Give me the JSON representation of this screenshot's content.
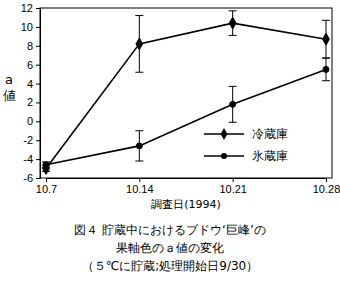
{
  "chart_data": {
    "type": "line",
    "title": [
      "図４ 貯蔵中におけるブドウ‘巨峰’の",
      "果軸色のａ値の変化",
      "（５℃に貯蔵;処理開始日9/30）"
    ],
    "x_label": "調査日(1994)",
    "y_label": "a値",
    "categories": [
      "10.7",
      "10.14",
      "10.21",
      "10.28"
    ],
    "series": [
      {
        "name": "冷蔵庫",
        "color": "#000000",
        "marker": "diamond",
        "values": [
          -5.0,
          8.2,
          10.4,
          8.7
        ],
        "errors": [
          0.3,
          3.0,
          1.3,
          2.0
        ]
      },
      {
        "name": "氷蔵庫",
        "color": "#000000",
        "marker": "circle",
        "values": [
          -4.6,
          -2.6,
          1.8,
          5.5
        ],
        "errors": [
          0.3,
          1.6,
          1.9,
          1.2
        ]
      }
    ],
    "ylim": [
      -6,
      12
    ],
    "yticks": [
      -6,
      -4,
      -2,
      0,
      2,
      4,
      6,
      8,
      10,
      12
    ],
    "legend": "lower right",
    "grid": false
  }
}
